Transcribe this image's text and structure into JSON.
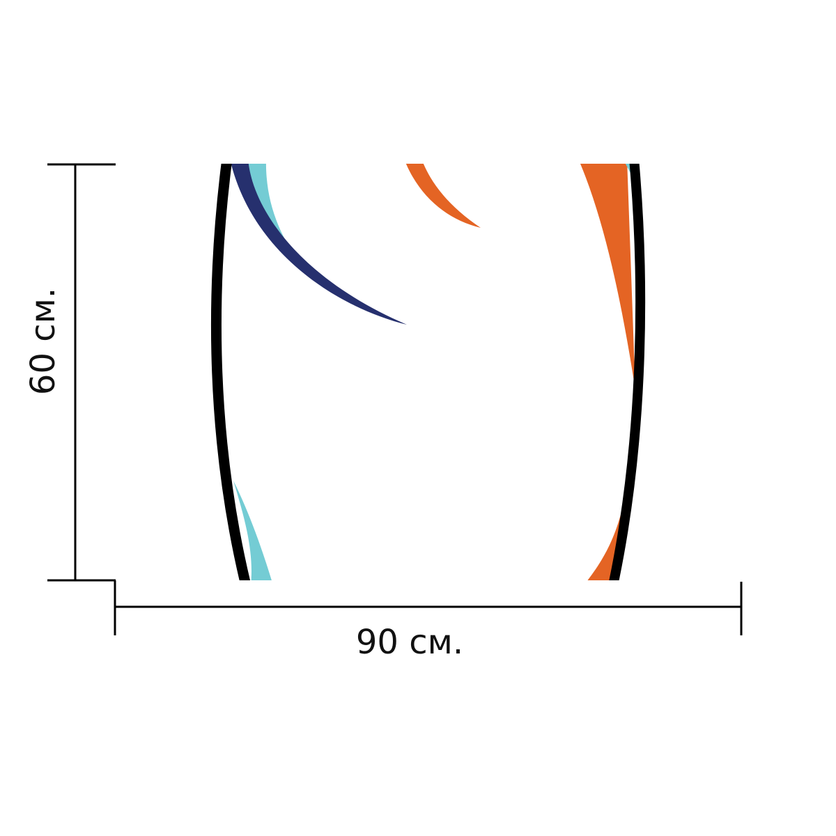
{
  "dimensions": {
    "width_label": "90 см.",
    "height_label": "60 см."
  },
  "colors": {
    "background": "#ffffff",
    "outline": "#000000",
    "navy": "#26306e",
    "cyan": "#74ccd4",
    "orange": "#e46424",
    "dimension_line": "#000000"
  }
}
